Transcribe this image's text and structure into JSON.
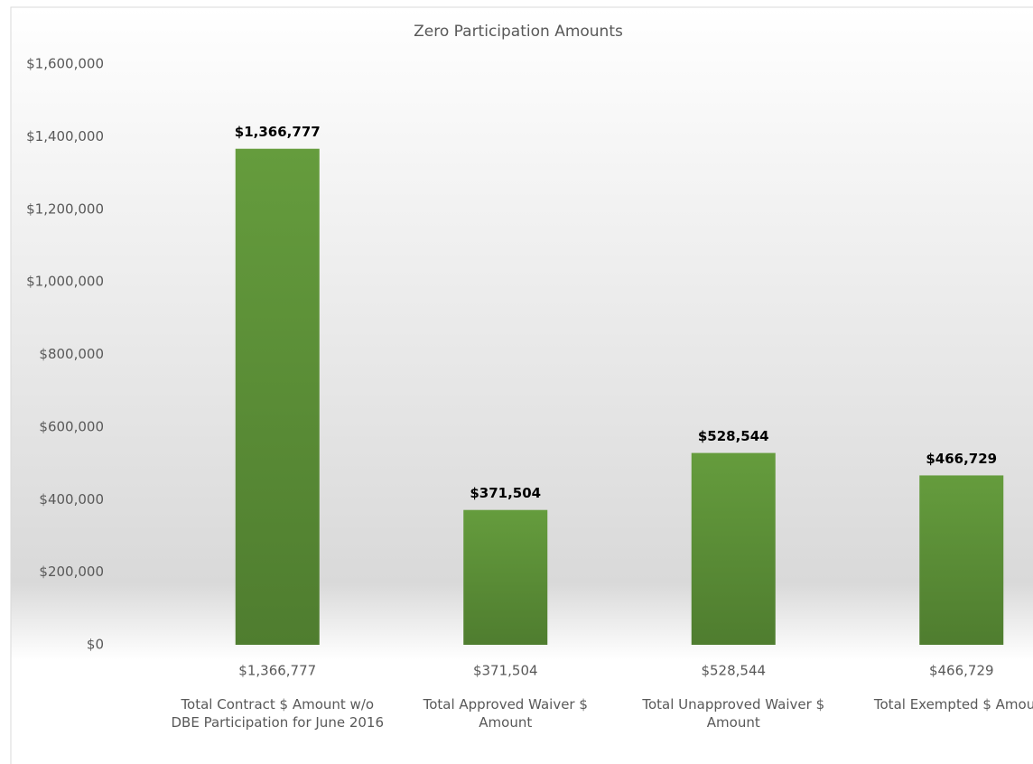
{
  "chart_data": {
    "type": "bar",
    "title": "Zero Participation Amounts",
    "categories": [
      "Total Contract $ Amount w/o DBE Participation for June 2016",
      "Total Approved Waiver $ Amount",
      "Total Unapproved Waiver $ Amount",
      "Total Exempted $ Amount"
    ],
    "values": [
      1366777,
      371504,
      528544,
      466729
    ],
    "value_labels": [
      "$1,366,777",
      "$371,504",
      "$528,544",
      "$466,729"
    ],
    "color": "#5a8f36",
    "ylim": [
      0,
      1600000
    ],
    "yticks": [
      {
        "value": 0,
        "label": "$0"
      },
      {
        "value": 200000,
        "label": "$200,000"
      },
      {
        "value": 400000,
        "label": "$400,000"
      },
      {
        "value": 600000,
        "label": "$600,000"
      },
      {
        "value": 800000,
        "label": "$800,000"
      },
      {
        "value": 1000000,
        "label": "$1,000,000"
      },
      {
        "value": 1200000,
        "label": "$1,200,000"
      },
      {
        "value": 1400000,
        "label": "$1,400,000"
      },
      {
        "value": 1600000,
        "label": "$1,600,000"
      }
    ],
    "grid": false
  }
}
